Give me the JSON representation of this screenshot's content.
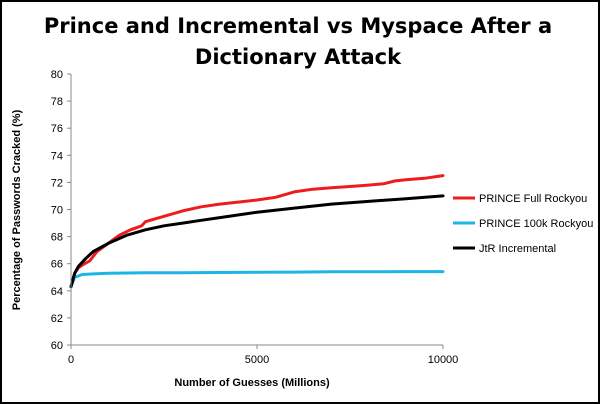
{
  "chart_data": {
    "type": "line",
    "title_lines": [
      "Prince and Incremental vs Myspace After a",
      "Dictionary Attack"
    ],
    "xlabel": "Number of Guesses (Millions)",
    "ylabel": "Percentage of Passwords Cracked (%)",
    "xlim": [
      0,
      10000
    ],
    "ylim": [
      60,
      80
    ],
    "x_ticks": [
      "0",
      "5000",
      "10000"
    ],
    "y_ticks": [
      "60",
      "62",
      "64",
      "66",
      "68",
      "70",
      "72",
      "74",
      "76",
      "78",
      "80"
    ],
    "grid": false,
    "legend_position": "right",
    "series": [
      {
        "name": "PRINCE Full Rockyou",
        "color": "#ee1c1c",
        "x": [
          0,
          100,
          200,
          300,
          500,
          700,
          1000,
          1300,
          1600,
          1900,
          2000,
          2500,
          3000,
          3500,
          4000,
          5000,
          5500,
          6000,
          6500,
          7000,
          7500,
          8000,
          8400,
          8700,
          9000,
          9500,
          10000
        ],
        "y": [
          64.3,
          65.3,
          65.7,
          65.9,
          66.2,
          66.9,
          67.5,
          68.1,
          68.5,
          68.8,
          69.1,
          69.5,
          69.9,
          70.2,
          70.4,
          70.7,
          70.9,
          71.3,
          71.5,
          71.6,
          71.7,
          71.8,
          71.9,
          72.1,
          72.2,
          72.3,
          72.5
        ]
      },
      {
        "name": "PRINCE 100k Rockyou",
        "color": "#1eb4e6",
        "x": [
          0,
          100,
          300,
          600,
          1000,
          2000,
          3000,
          4000,
          5000,
          6000,
          7000,
          8000,
          9000,
          10000
        ],
        "y": [
          64.3,
          65.0,
          65.2,
          65.25,
          65.3,
          65.33,
          65.33,
          65.35,
          65.37,
          65.38,
          65.4,
          65.4,
          65.42,
          65.42
        ]
      },
      {
        "name": "JtR Incremental",
        "color": "#000000",
        "x": [
          0,
          100,
          200,
          400,
          600,
          800,
          1000,
          1500,
          2000,
          2500,
          3000,
          3500,
          4000,
          5000,
          6000,
          7000,
          8000,
          9000,
          10000
        ],
        "y": [
          64.3,
          65.3,
          65.8,
          66.4,
          66.9,
          67.2,
          67.5,
          68.1,
          68.5,
          68.8,
          69.0,
          69.2,
          69.4,
          69.8,
          70.1,
          70.4,
          70.6,
          70.8,
          71.0
        ]
      }
    ]
  }
}
